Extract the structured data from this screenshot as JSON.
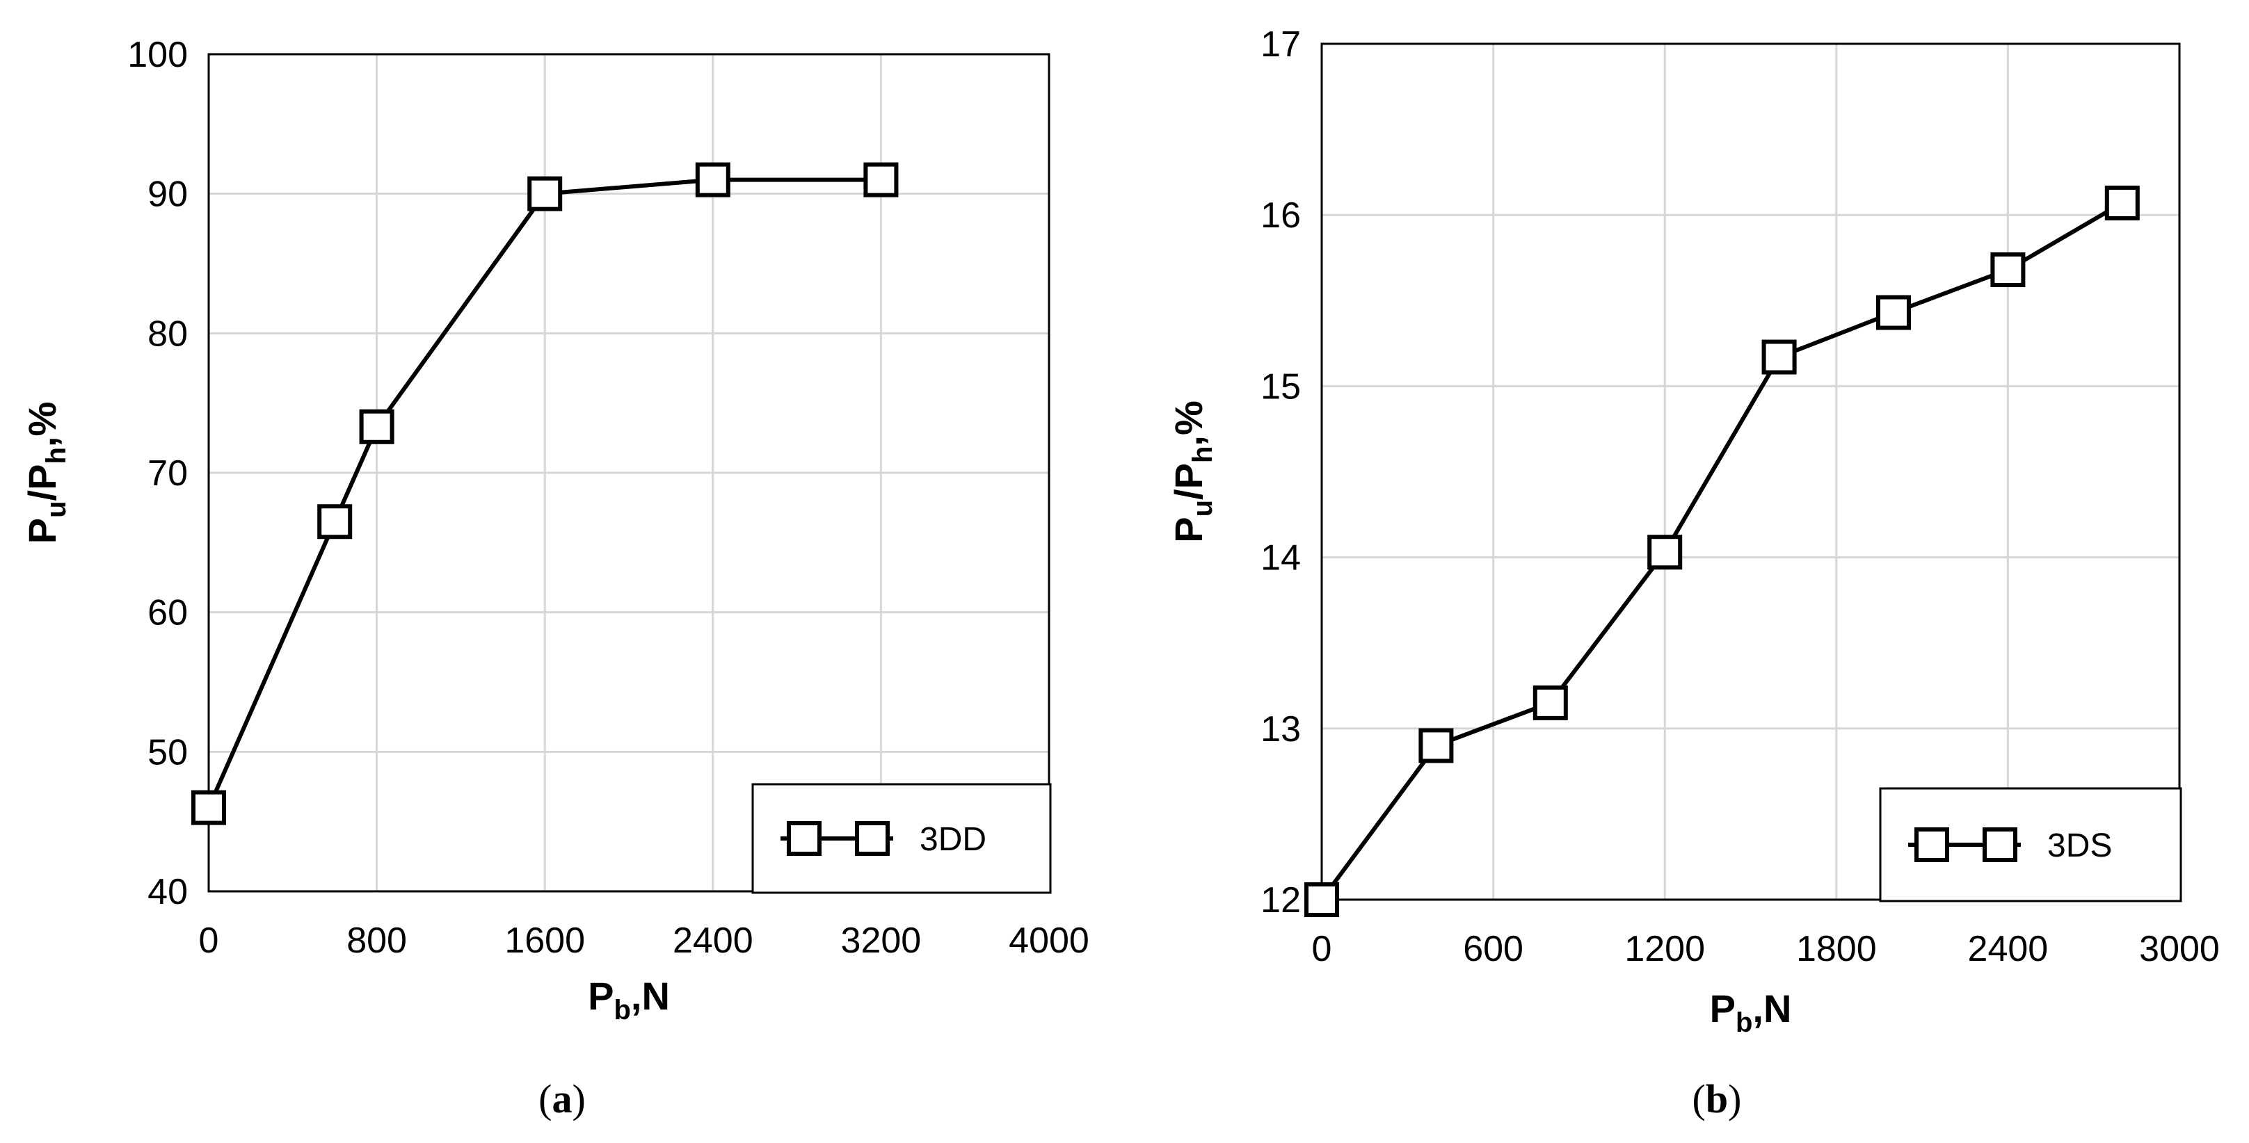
{
  "chart_data": [
    {
      "type": "line",
      "caption": "a",
      "xlabel": {
        "main": "P",
        "sub": "b",
        "tail": ",N"
      },
      "ylabel": {
        "p1": "P",
        "s1": "u",
        "mid": "/P",
        "s2": "h",
        "tail": ",%"
      },
      "xlim": [
        0,
        4000
      ],
      "ylim": [
        40,
        100
      ],
      "xticks": [
        0,
        800,
        1600,
        2400,
        3200,
        4000
      ],
      "yticks": [
        40,
        50,
        60,
        70,
        80,
        90,
        100
      ],
      "xtick_labels": [
        "0",
        "800",
        "1600",
        "2400",
        "3200",
        "4000"
      ],
      "ytick_labels": [
        "40",
        "50",
        "60",
        "70",
        "80",
        "90",
        "100"
      ],
      "grid": true,
      "legend_position": "bottom-right",
      "marker": "square",
      "series": [
        {
          "name": "3DD",
          "x": [
            0,
            600,
            800,
            1600,
            2400,
            3200
          ],
          "y": [
            46,
            66.5,
            73.3,
            90,
            91,
            91
          ]
        }
      ]
    },
    {
      "type": "line",
      "caption": "b",
      "xlabel": {
        "main": "P",
        "sub": "b",
        "tail": ",N"
      },
      "ylabel": {
        "p1": "P",
        "s1": "u",
        "mid": "/P",
        "s2": "h",
        "tail": ",%"
      },
      "xlim": [
        0,
        3000
      ],
      "ylim": [
        12,
        17
      ],
      "xticks": [
        0,
        600,
        1200,
        1800,
        2400,
        3000
      ],
      "yticks": [
        12,
        13,
        14,
        15,
        16,
        17
      ],
      "xtick_labels": [
        "0",
        "600",
        "1200",
        "1800",
        "2400",
        "3000"
      ],
      "ytick_labels": [
        "12",
        "13",
        "14",
        "15",
        "16",
        "17"
      ],
      "grid": true,
      "legend_position": "bottom-right",
      "marker": "square",
      "series": [
        {
          "name": "3DS",
          "x": [
            0,
            400,
            800,
            1200,
            1600,
            2000,
            2400,
            2800
          ],
          "y": [
            12.0,
            12.9,
            13.15,
            14.03,
            15.17,
            15.43,
            15.68,
            16.07
          ]
        }
      ]
    }
  ]
}
